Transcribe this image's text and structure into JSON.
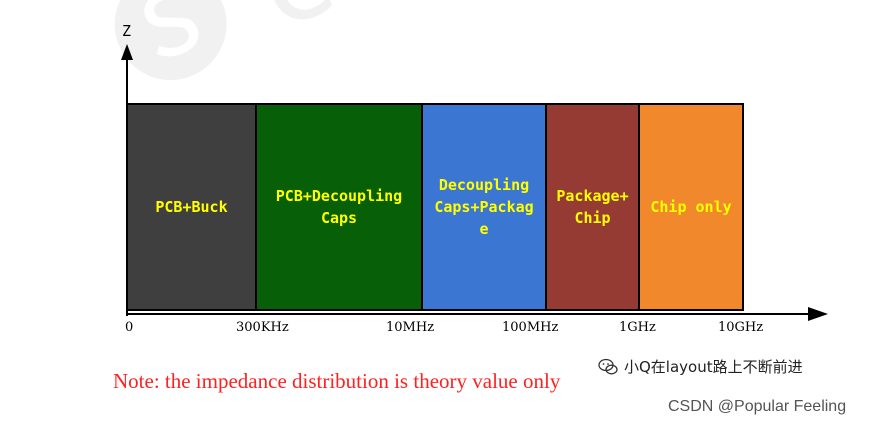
{
  "axis": {
    "y_label": "Z",
    "x_ticks": [
      "0",
      "300KHz",
      "10MHz",
      "100MHz",
      "1GHz",
      "10GHz"
    ]
  },
  "bands": [
    {
      "label": "PCB+Buck",
      "color": "#3f3f3f"
    },
    {
      "label": "PCB+Decoupling\nCaps",
      "color": "#075f07"
    },
    {
      "label": "Decoupling\nCaps+Packag\ne",
      "color": "#3a76d2"
    },
    {
      "label": "Package+\nChip",
      "color": "#963a34"
    },
    {
      "label": "Chip only",
      "color": "#f1882b"
    }
  ],
  "note": "Note: the impedance distribution is theory value only",
  "watermarks": {
    "wechat": "小Q在layout路上不断前进",
    "csdn": "CSDN @Popular Feeling"
  }
}
